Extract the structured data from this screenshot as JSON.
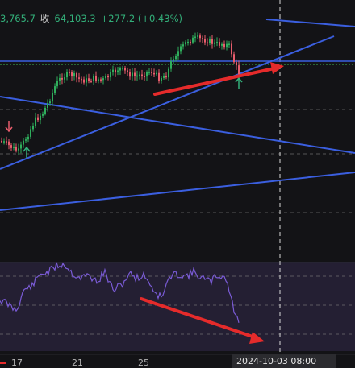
{
  "info": {
    "high_fragment": "3,765.7",
    "close_label": "收",
    "close_value": "64,103.3",
    "change": "+277.2 (+0.43%)"
  },
  "x_axis": {
    "ticks": [
      "17",
      "21",
      "25"
    ],
    "crosshair_label": "2024-10-03   08:00"
  },
  "colors": {
    "background": "#131316",
    "bull_candle": "#2fae5c",
    "bear_candle": "#e85d6c",
    "trendline": "#3b5fe0",
    "annotation_arrow": "#e52b2b",
    "oscillator": "#7a5bd6",
    "oscillator_band": "#241f33",
    "price_line": "#3dbb53"
  },
  "markers": {
    "sell": "sell-arrow",
    "buy": "buy-arrow"
  }
}
